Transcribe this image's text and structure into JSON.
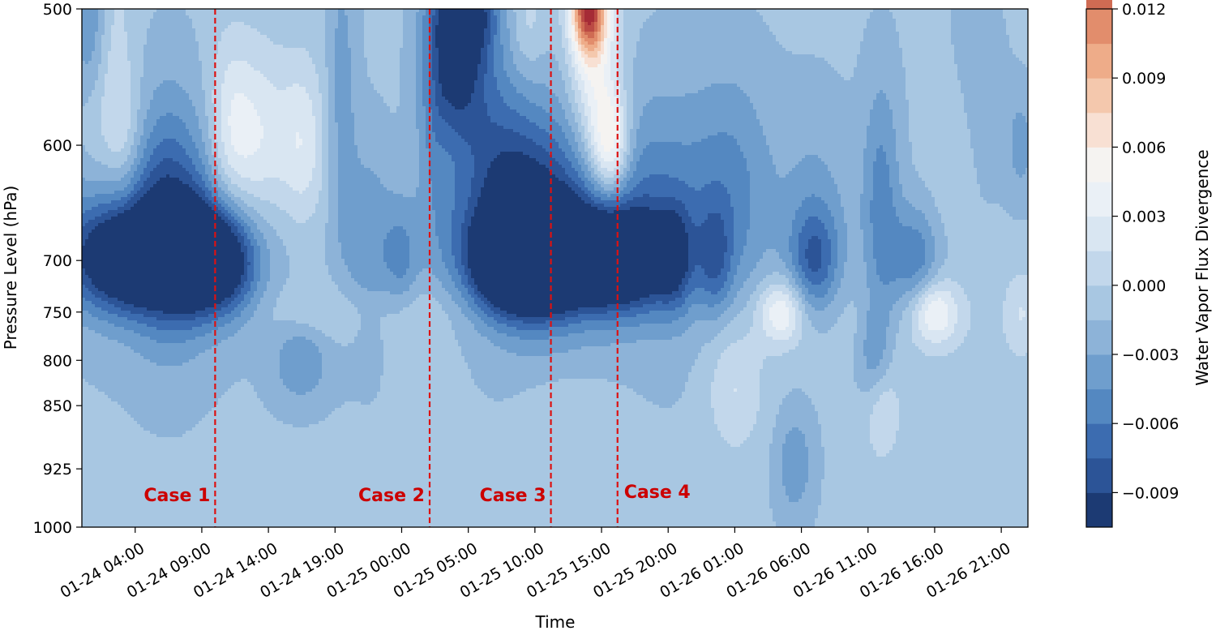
{
  "chart_data": {
    "type": "heatmap",
    "subtype": "filled-contour",
    "title": "",
    "xlabel": "Time",
    "ylabel": "Pressure Level (hPa)",
    "x_tick_labels": [
      "01-24 04:00",
      "01-24 09:00",
      "01-24 14:00",
      "01-24 19:00",
      "01-25 00:00",
      "01-25 05:00",
      "01-25 10:00",
      "01-25 15:00",
      "01-25 20:00",
      "01-26 01:00",
      "01-26 06:00",
      "01-26 11:00",
      "01-26 16:00",
      "01-26 21:00"
    ],
    "x_tick_hours": [
      4,
      9,
      14,
      19,
      24,
      29,
      34,
      39,
      44,
      49,
      54,
      59,
      64,
      69
    ],
    "xlim_hours": [
      0,
      71
    ],
    "y_levels": [
      500,
      600,
      700,
      750,
      800,
      850,
      925,
      1000
    ],
    "y_tick_labels": [
      "500",
      "600",
      "700",
      "750",
      "800",
      "850",
      "925",
      "1000"
    ],
    "y_scale": "log",
    "ylim": [
      1000,
      500
    ],
    "colorbar": {
      "label": "Water Vapor Flux Divergence",
      "min": -0.0105,
      "max": 0.012,
      "step": 0.0015,
      "ticks": [
        -0.009,
        -0.006,
        -0.003,
        0.0,
        0.003,
        0.006,
        0.009,
        0.012
      ],
      "tick_labels": [
        "−0.009",
        "−0.006",
        "−0.003",
        "0.000",
        "0.003",
        "0.006",
        "0.009",
        "0.012"
      ],
      "colormap": [
        "#1c3a73",
        "#2c5497",
        "#3c6cb0",
        "#5488c1",
        "#6f9ecd",
        "#8db3d8",
        "#a8c7e2",
        "#c2d7eb",
        "#d9e6f2",
        "#eaf0f6",
        "#f5f3f1",
        "#f8e0d3",
        "#f4c8ad",
        "#eeac89",
        "#e28d6c",
        "#cf6b53",
        "#bb4a44",
        "#a52b36",
        "#870f26",
        "#67001f"
      ]
    },
    "annotations": [
      {
        "text": "Case 1",
        "x_hour": 10.0
      },
      {
        "text": "Case 2",
        "x_hour": 26.1
      },
      {
        "text": "Case 3",
        "x_hour": 35.2
      },
      {
        "text": "Case 4",
        "x_hour": 40.2
      }
    ],
    "line_color": "#dd1111",
    "features": [
      {
        "t": 4.0,
        "p": 700,
        "v": -0.0095,
        "st": 3.0,
        "sp": 0.045
      },
      {
        "t": 2.0,
        "p": 680,
        "v": -0.005,
        "st": 4.0,
        "sp": 0.09
      },
      {
        "t": 6.5,
        "p": 660,
        "v": -0.005,
        "st": 2.0,
        "sp": 0.12
      },
      {
        "t": 8.5,
        "p": 700,
        "v": -0.0065,
        "st": 1.5,
        "sp": 0.05
      },
      {
        "t": 11.0,
        "p": 700,
        "v": -0.0075,
        "st": 1.6,
        "sp": 0.05
      },
      {
        "t": 10.0,
        "p": 690,
        "v": -0.003,
        "st": 4.0,
        "sp": 0.09
      },
      {
        "t": 3.0,
        "p": 600,
        "v": 0.0035,
        "st": 1.2,
        "sp": 0.07
      },
      {
        "t": 0.5,
        "p": 600,
        "v": 0.002,
        "st": 1.0,
        "sp": 0.08
      },
      {
        "t": 11.0,
        "p": 590,
        "v": 0.003,
        "st": 1.1,
        "sp": 0.09
      },
      {
        "t": 13.0,
        "p": 600,
        "v": 0.0045,
        "st": 1.6,
        "sp": 0.09
      },
      {
        "t": 16.5,
        "p": 600,
        "v": 0.004,
        "st": 1.3,
        "sp": 0.08
      },
      {
        "t": 0.5,
        "p": 500,
        "v": -0.0035,
        "st": 0.9,
        "sp": 0.1
      },
      {
        "t": 2.5,
        "p": 520,
        "v": 0.0015,
        "st": 1.0,
        "sp": 0.12
      },
      {
        "t": 16.5,
        "p": 800,
        "v": -0.0035,
        "st": 1.6,
        "sp": 0.04
      },
      {
        "t": 21.5,
        "p": 690,
        "v": -0.003,
        "st": 1.3,
        "sp": 0.1
      },
      {
        "t": 19.5,
        "p": 560,
        "v": -0.0025,
        "st": 0.8,
        "sp": 0.15
      },
      {
        "t": 24.0,
        "p": 700,
        "v": -0.0035,
        "st": 1.0,
        "sp": 0.06
      },
      {
        "t": 18.0,
        "p": 750,
        "v": 0.0012,
        "st": 3.0,
        "sp": 0.025
      },
      {
        "t": 25.0,
        "p": 750,
        "v": 0.0012,
        "st": 2.0,
        "sp": 0.025
      },
      {
        "t": 28.5,
        "p": 530,
        "v": -0.007,
        "st": 1.6,
        "sp": 0.08
      },
      {
        "t": 27.0,
        "p": 570,
        "v": -0.004,
        "st": 1.2,
        "sp": 0.15
      },
      {
        "t": 29.0,
        "p": 500,
        "v": -0.006,
        "st": 1.5,
        "sp": 0.04
      },
      {
        "t": 31.5,
        "p": 700,
        "v": -0.0085,
        "st": 2.0,
        "sp": 0.045
      },
      {
        "t": 34.0,
        "p": 700,
        "v": -0.009,
        "st": 2.0,
        "sp": 0.045
      },
      {
        "t": 36.5,
        "p": 700,
        "v": -0.0085,
        "st": 2.0,
        "sp": 0.045
      },
      {
        "t": 39.5,
        "p": 700,
        "v": -0.0075,
        "st": 1.5,
        "sp": 0.045
      },
      {
        "t": 42.0,
        "p": 700,
        "v": -0.007,
        "st": 1.5,
        "sp": 0.045
      },
      {
        "t": 33.5,
        "p": 660,
        "v": -0.007,
        "st": 3.0,
        "sp": 0.1
      },
      {
        "t": 38.5,
        "p": 680,
        "v": -0.0035,
        "st": 5.0,
        "sp": 0.1
      },
      {
        "t": 31.0,
        "p": 620,
        "v": -0.003,
        "st": 2.0,
        "sp": 0.12
      },
      {
        "t": 27.5,
        "p": 600,
        "v": 0.0015,
        "st": 0.7,
        "sp": 0.05
      },
      {
        "t": 39.7,
        "p": 600,
        "v": 0.0075,
        "st": 1.0,
        "sp": 0.05
      },
      {
        "t": 38.5,
        "p": 540,
        "v": 0.006,
        "st": 1.3,
        "sp": 0.1
      },
      {
        "t": 38.0,
        "p": 500,
        "v": 0.0135,
        "st": 0.9,
        "sp": 0.04
      },
      {
        "t": 33.5,
        "p": 510,
        "v": 0.002,
        "st": 0.9,
        "sp": 0.05
      },
      {
        "t": 37.0,
        "p": 850,
        "v": 0.0015,
        "st": 2.5,
        "sp": 0.025
      },
      {
        "t": 44.5,
        "p": 700,
        "v": -0.0055,
        "st": 1.0,
        "sp": 0.05
      },
      {
        "t": 47.5,
        "p": 700,
        "v": -0.004,
        "st": 0.9,
        "sp": 0.05
      },
      {
        "t": 44.0,
        "p": 650,
        "v": -0.003,
        "st": 4.0,
        "sp": 0.12
      },
      {
        "t": 49.0,
        "p": 640,
        "v": -0.0025,
        "st": 2.0,
        "sp": 0.12
      },
      {
        "t": 52.5,
        "p": 750,
        "v": 0.0055,
        "st": 1.2,
        "sp": 0.03
      },
      {
        "t": 49.0,
        "p": 830,
        "v": 0.003,
        "st": 1.5,
        "sp": 0.06
      },
      {
        "t": 55.0,
        "p": 700,
        "v": -0.0055,
        "st": 1.3,
        "sp": 0.05
      },
      {
        "t": 55.0,
        "p": 650,
        "v": -0.002,
        "st": 2.0,
        "sp": 0.1
      },
      {
        "t": 60.0,
        "p": 650,
        "v": -0.004,
        "st": 1.0,
        "sp": 0.12
      },
      {
        "t": 59.5,
        "p": 800,
        "v": -0.0035,
        "st": 0.9,
        "sp": 0.05
      },
      {
        "t": 62.5,
        "p": 700,
        "v": -0.0045,
        "st": 1.3,
        "sp": 0.05
      },
      {
        "t": 64.0,
        "p": 750,
        "v": 0.0055,
        "st": 1.2,
        "sp": 0.03
      },
      {
        "t": 60.0,
        "p": 850,
        "v": 0.0035,
        "st": 1.0,
        "sp": 0.05
      },
      {
        "t": 53.5,
        "p": 920,
        "v": -0.003,
        "st": 1.0,
        "sp": 0.05
      },
      {
        "t": 65.5,
        "p": 600,
        "v": 0.0015,
        "st": 1.2,
        "sp": 0.08
      },
      {
        "t": 70.5,
        "p": 750,
        "v": 0.002,
        "st": 0.8,
        "sp": 0.04
      },
      {
        "t": 70.5,
        "p": 600,
        "v": -0.0025,
        "st": 0.8,
        "sp": 0.05
      },
      {
        "t": 67.0,
        "p": 560,
        "v": -0.0015,
        "st": 1.5,
        "sp": 0.1
      }
    ]
  }
}
